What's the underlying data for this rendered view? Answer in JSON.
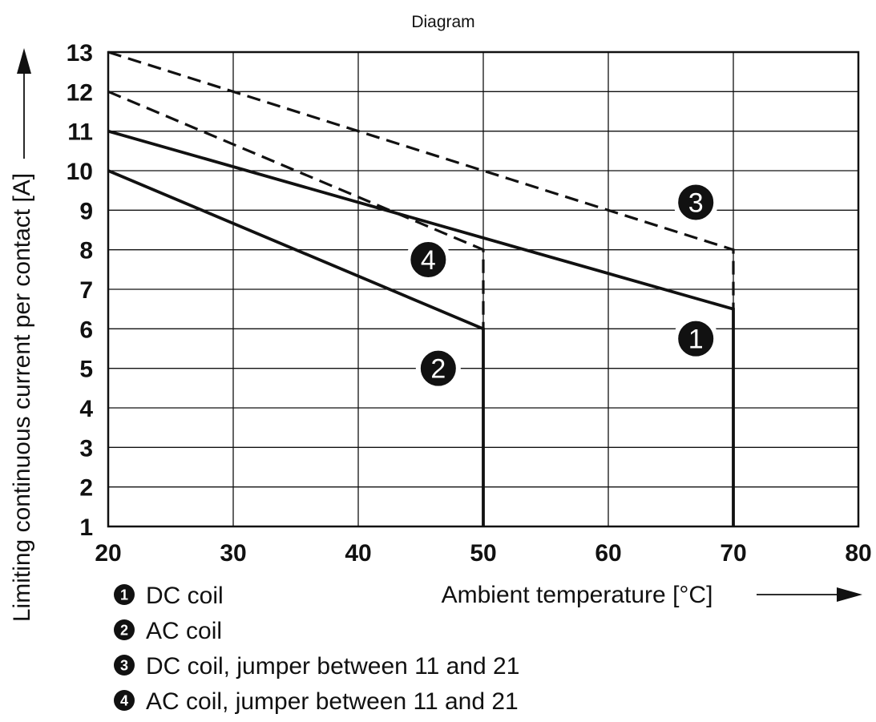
{
  "chart_data": {
    "type": "line",
    "title": "Diagram",
    "xlabel": "Ambient temperature [°C]",
    "ylabel": "Limiting continuous current per contact [A]",
    "xlim": [
      20,
      80
    ],
    "ylim": [
      1,
      13
    ],
    "x_ticks": [
      "20",
      "30",
      "40",
      "50",
      "60",
      "70",
      "80"
    ],
    "y_ticks": [
      "1",
      "2",
      "3",
      "4",
      "5",
      "6",
      "7",
      "8",
      "9",
      "10",
      "11",
      "12",
      "13"
    ],
    "grid": true,
    "series": [
      {
        "id": "1",
        "name": "DC coil",
        "style": "solid",
        "x": [
          20,
          70,
          70
        ],
        "y": [
          11,
          6.5,
          1
        ]
      },
      {
        "id": "2",
        "name": "AC coil",
        "style": "solid",
        "x": [
          20,
          50,
          50
        ],
        "y": [
          10,
          6,
          1
        ]
      },
      {
        "id": "3",
        "name": "DC coil, jumper between 11 and 21",
        "style": "dashed",
        "x": [
          20,
          70,
          70
        ],
        "y": [
          13,
          8,
          6.5
        ]
      },
      {
        "id": "4",
        "name": "AC coil, jumper between 11 and 21",
        "style": "dashed",
        "x": [
          20,
          50,
          50
        ],
        "y": [
          12,
          8,
          6
        ]
      }
    ],
    "annotations": [
      {
        "label": "1",
        "x": 67,
        "y": 5.75
      },
      {
        "label": "2",
        "x": 46.4,
        "y": 5.0
      },
      {
        "label": "3",
        "x": 67,
        "y": 9.2
      },
      {
        "label": "4",
        "x": 45.6,
        "y": 7.75
      }
    ],
    "legend_position": "bottom-left",
    "colors": {
      "line": "#111111",
      "grid": "#111111",
      "marker": "#111111"
    }
  }
}
